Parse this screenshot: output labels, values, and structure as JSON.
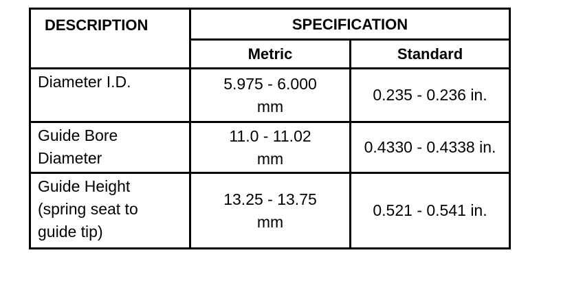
{
  "table": {
    "header": {
      "description": "DESCRIPTION",
      "specification": "SPECIFICATION",
      "metric": "Metric",
      "standard": "Standard"
    },
    "rows": [
      [
        "Diameter I.D.",
        "5.975 - 6.000 mm",
        "0.235 - 0.236 in."
      ],
      [
        "Guide Bore Diameter",
        "11.0 - 11.02 mm",
        "0.4330 - 0.4338 in."
      ],
      [
        "Guide Height (spring seat to guide tip)",
        "13.25 - 13.75 mm",
        "0.521 - 0.541 in."
      ]
    ]
  }
}
